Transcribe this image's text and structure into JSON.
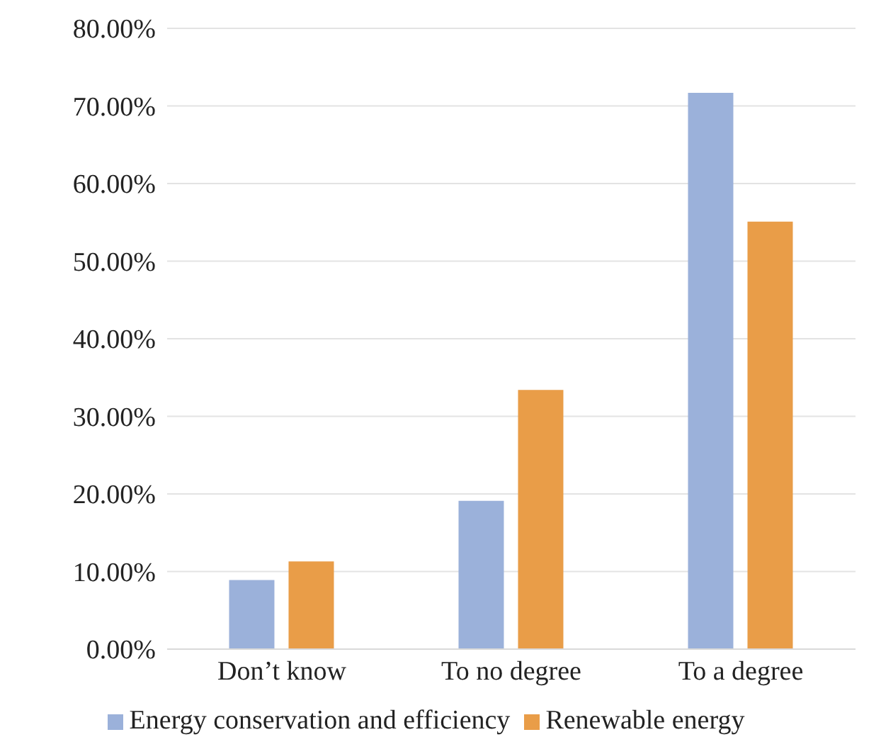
{
  "chart_data": {
    "type": "bar",
    "categories": [
      "Don’t know",
      "To no degree",
      "To a degree"
    ],
    "series": [
      {
        "name": "Energy conservation and efficiency",
        "color": "#9bb1da",
        "values": [
          8.9,
          19.1,
          71.7
        ]
      },
      {
        "name": "Renewable energy",
        "color": "#e99d48",
        "values": [
          11.3,
          33.4,
          55.1
        ]
      }
    ],
    "ylim": [
      0,
      80
    ],
    "yticks": [
      {
        "value": 0,
        "label": "0.00%"
      },
      {
        "value": 10,
        "label": "10.00%"
      },
      {
        "value": 20,
        "label": "20.00%"
      },
      {
        "value": 30,
        "label": "30.00%"
      },
      {
        "value": 40,
        "label": "40.00%"
      },
      {
        "value": 50,
        "label": "50.00%"
      },
      {
        "value": 60,
        "label": "60.00%"
      },
      {
        "value": 70,
        "label": "70.00%"
      },
      {
        "value": 80,
        "label": "80.00%"
      }
    ],
    "grid": "y",
    "legend": "bottom"
  }
}
